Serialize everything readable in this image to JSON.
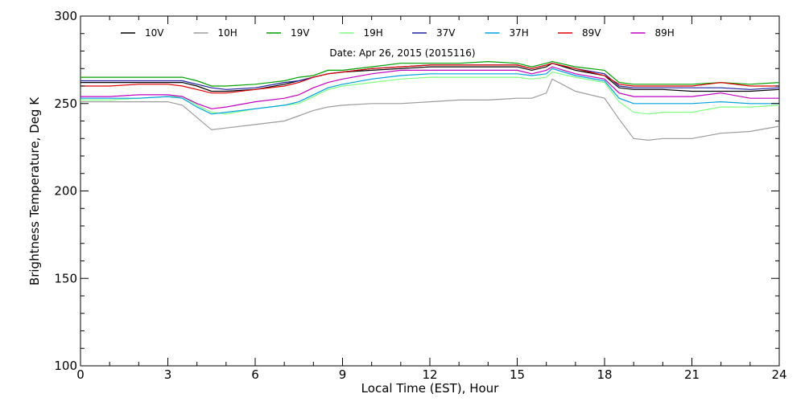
{
  "chart_data": {
    "type": "line",
    "annotation": "Date: Apr 26, 2015 (2015116)",
    "xlabel": "Local Time (EST), Hour",
    "ylabel": "Brightness Temperature, Deg K",
    "xlim": [
      0,
      24
    ],
    "ylim": [
      100,
      300
    ],
    "xticks": [
      0,
      3,
      6,
      9,
      12,
      15,
      18,
      21,
      24
    ],
    "yticks": [
      100,
      150,
      200,
      250,
      300
    ],
    "grid": false,
    "legend_position": "top",
    "series": [
      {
        "name": "10V",
        "color": "#000000",
        "x": [
          0,
          1,
          2,
          3,
          3.5,
          4,
          4.5,
          5,
          6,
          7,
          7.5,
          8,
          8.5,
          9,
          10,
          11,
          12,
          13,
          14,
          15,
          15.5,
          16,
          16.2,
          17,
          18,
          18.5,
          19,
          19.5,
          20,
          21,
          22,
          23,
          24
        ],
        "y": [
          262,
          262,
          262,
          262,
          262,
          260,
          257,
          257,
          258,
          261,
          263,
          265,
          267,
          268,
          269,
          270,
          271,
          271,
          271,
          271,
          269,
          271,
          273,
          269,
          266,
          259,
          258,
          258,
          258,
          257,
          257,
          257,
          258
        ]
      },
      {
        "name": "10H",
        "color": "#9c9c9c",
        "x": [
          0,
          1,
          2,
          3,
          3.5,
          4,
          4.5,
          5,
          6,
          7,
          7.5,
          8,
          8.5,
          9,
          10,
          11,
          12,
          13,
          14,
          15,
          15.5,
          16,
          16.2,
          17,
          18,
          18.5,
          19,
          19.5,
          20,
          21,
          22,
          23,
          24
        ],
        "y": [
          251,
          251,
          251,
          251,
          249,
          242,
          235,
          236,
          238,
          240,
          243,
          246,
          248,
          249,
          250,
          250,
          251,
          252,
          252,
          253,
          253,
          256,
          264,
          257,
          253,
          241,
          230,
          229,
          230,
          230,
          233,
          234,
          237
        ]
      },
      {
        "name": "19V",
        "color": "#00a000",
        "x": [
          0,
          1,
          2,
          3,
          3.5,
          4,
          4.5,
          5,
          6,
          7,
          7.5,
          8,
          8.5,
          9,
          10,
          11,
          12,
          13,
          14,
          15,
          15.5,
          16,
          16.2,
          17,
          18,
          18.5,
          19,
          19.5,
          20,
          21,
          22,
          23,
          24
        ],
        "y": [
          265,
          265,
          265,
          265,
          265,
          263,
          260,
          260,
          261,
          263,
          265,
          266,
          269,
          269,
          271,
          273,
          273,
          273,
          274,
          273,
          271,
          273,
          274,
          271,
          269,
          262,
          261,
          261,
          261,
          261,
          262,
          261,
          262
        ]
      },
      {
        "name": "19H",
        "color": "#80ff80",
        "x": [
          0,
          1,
          2,
          3,
          3.5,
          4,
          4.5,
          5,
          6,
          7,
          7.5,
          8,
          8.5,
          9,
          10,
          11,
          12,
          13,
          14,
          15,
          15.5,
          16,
          16.2,
          17,
          18,
          18.5,
          19,
          19.5,
          20,
          21,
          22,
          23,
          24
        ],
        "y": [
          252,
          252,
          253,
          254,
          254,
          249,
          245,
          244,
          247,
          249,
          250,
          254,
          258,
          260,
          262,
          264,
          265,
          265,
          265,
          265,
          264,
          265,
          268,
          265,
          262,
          251,
          245,
          244,
          245,
          245,
          248,
          248,
          249
        ]
      },
      {
        "name": "37V",
        "color": "#2020a0",
        "x": [
          0,
          1,
          2,
          3,
          3.5,
          4,
          4.5,
          5,
          6,
          7,
          7.5,
          8,
          8.5,
          9,
          10,
          11,
          12,
          13,
          14,
          15,
          15.5,
          16,
          16.2,
          17,
          18,
          18.5,
          19,
          19.5,
          20,
          21,
          22,
          23,
          24
        ],
        "y": [
          263,
          263,
          263,
          263,
          263,
          261,
          259,
          258,
          259,
          262,
          263,
          265,
          267,
          268,
          270,
          271,
          272,
          272,
          272,
          272,
          270,
          272,
          273,
          270,
          267,
          260,
          259,
          259,
          259,
          259,
          259,
          258,
          259
        ]
      },
      {
        "name": "37H",
        "color": "#00a0e0",
        "x": [
          0,
          1,
          2,
          3,
          3.5,
          4,
          4.5,
          5,
          6,
          7,
          7.5,
          8,
          8.5,
          9,
          10,
          11,
          12,
          13,
          14,
          15,
          15.5,
          16,
          16.2,
          17,
          18,
          18.5,
          19,
          19.5,
          20,
          21,
          22,
          23,
          24
        ],
        "y": [
          253,
          253,
          253,
          254,
          253,
          248,
          244,
          245,
          247,
          249,
          251,
          255,
          259,
          261,
          264,
          266,
          267,
          267,
          267,
          267,
          266,
          267,
          270,
          266,
          263,
          253,
          250,
          250,
          250,
          250,
          251,
          250,
          250
        ]
      },
      {
        "name": "89V",
        "color": "#e00000",
        "x": [
          0,
          1,
          2,
          3,
          3.5,
          4,
          4.5,
          5,
          6,
          7,
          7.5,
          8,
          8.5,
          9,
          10,
          11,
          12,
          13,
          14,
          15,
          15.5,
          16,
          16.2,
          17,
          18,
          18.5,
          19,
          19.5,
          20,
          21,
          22,
          23,
          24
        ],
        "y": [
          260,
          260,
          261,
          261,
          260,
          258,
          256,
          256,
          258,
          260,
          262,
          265,
          267,
          268,
          270,
          271,
          272,
          272,
          272,
          272,
          270,
          272,
          273,
          270,
          266,
          261,
          260,
          260,
          260,
          260,
          262,
          260,
          260
        ]
      },
      {
        "name": "89H",
        "color": "#c000c0",
        "x": [
          0,
          1,
          2,
          3,
          3.5,
          4,
          4.5,
          5,
          6,
          7,
          7.5,
          8,
          8.5,
          9,
          10,
          11,
          12,
          13,
          14,
          15,
          15.5,
          16,
          16.2,
          17,
          18,
          18.5,
          19,
          19.5,
          20,
          21,
          22,
          23,
          24
        ],
        "y": [
          254,
          254,
          255,
          255,
          254,
          250,
          247,
          248,
          251,
          253,
          255,
          259,
          262,
          264,
          267,
          269,
          269,
          269,
          269,
          269,
          267,
          269,
          271,
          267,
          264,
          256,
          254,
          254,
          254,
          254,
          256,
          253,
          253
        ]
      }
    ]
  }
}
